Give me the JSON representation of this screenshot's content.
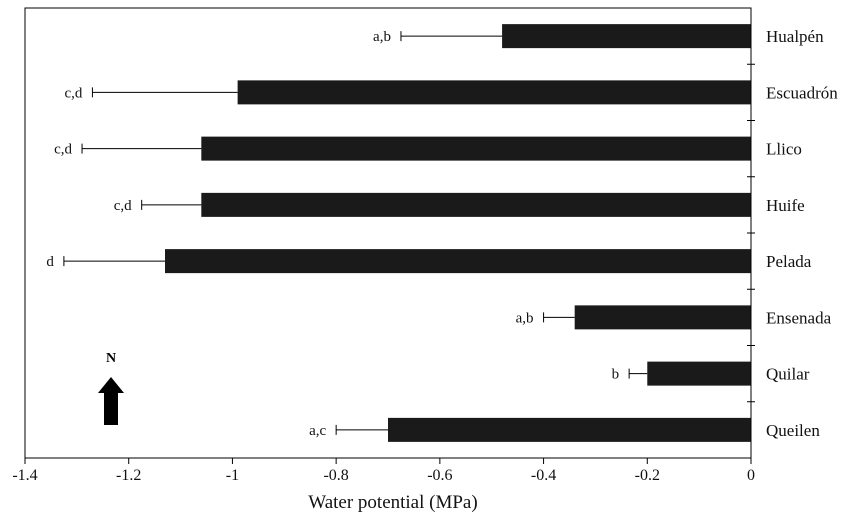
{
  "chart_data": {
    "type": "bar",
    "orientation": "horizontal",
    "title": "",
    "xlabel": "Water potential (MPa)",
    "ylabel": "",
    "xlim": [
      -1.4,
      0
    ],
    "xticks": [
      -1.4,
      -1.2,
      -1,
      -0.8,
      -0.6,
      -0.4,
      -0.2,
      0
    ],
    "xtick_labels": [
      "-1.4",
      "-1.2",
      "-1",
      "-0.8",
      "-0.6",
      "-0.4",
      "-0.2",
      "0"
    ],
    "categories": [
      "Hualpén",
      "Escuadrón",
      "Llico",
      "Huife",
      "Pelada",
      "Ensenada",
      "Quilar",
      "Queilen"
    ],
    "values": [
      -0.48,
      -0.99,
      -1.06,
      -1.06,
      -1.13,
      -0.34,
      -0.2,
      -0.7
    ],
    "error": [
      0.195,
      0.28,
      0.23,
      0.115,
      0.195,
      0.06,
      0.035,
      0.1
    ],
    "significance_labels": [
      "a,b",
      "c,d",
      "c,d",
      "c,d",
      "d",
      "a,b",
      "b",
      "a,c"
    ],
    "bar_color": "#1a1a1a",
    "grid": false,
    "legend": "none",
    "annotation": {
      "text": "N",
      "icon": "north-arrow-icon"
    }
  }
}
